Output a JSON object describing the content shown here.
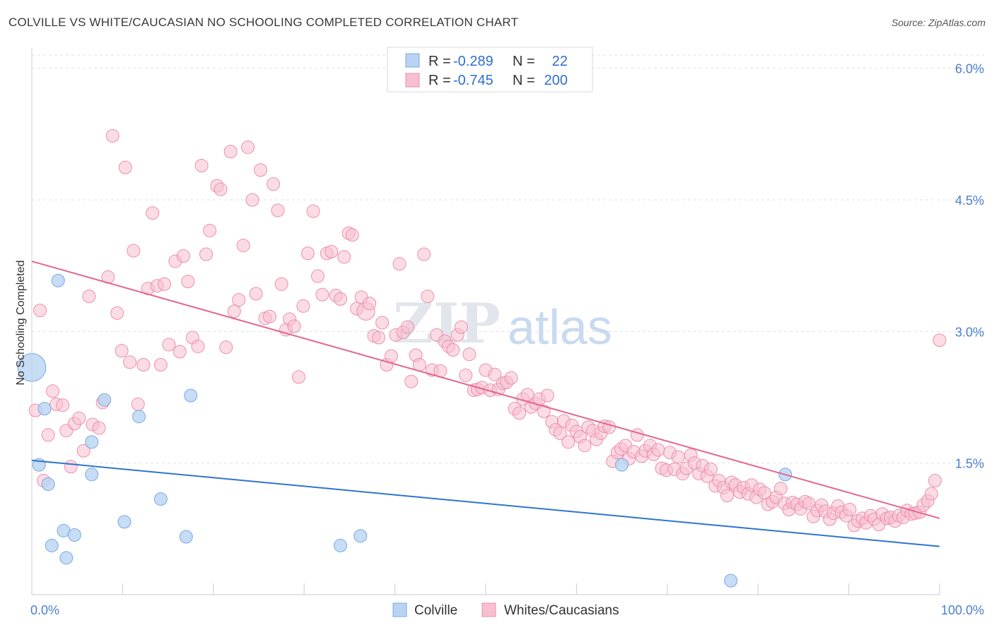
{
  "title": "COLVILLE VS WHITE/CAUCASIAN NO SCHOOLING COMPLETED CORRELATION CHART",
  "source": "Source: ZipAtlas.com",
  "watermark": {
    "part1": "ZIP",
    "part2": "atlas"
  },
  "colors": {
    "blue_fill": "#b9d3f3",
    "blue_stroke": "#7aa8e0",
    "blue_line": "#2f74d0",
    "pink_fill": "#f7bfd0",
    "pink_stroke": "#eb8fad",
    "pink_line": "#e2688f",
    "grid": "#dde0e5",
    "axis_text": "#4a7fd0"
  },
  "legend": {
    "rows": [
      {
        "r_label": "R = ",
        "r_value": "-0.289",
        "n_label": "N = ",
        "n_value": "22"
      },
      {
        "r_label": "R = ",
        "r_value": "-0.745",
        "n_label": "N = ",
        "n_value": "200"
      }
    ]
  },
  "bottom_legend": {
    "items": [
      "Colville",
      "Whites/Caucasians"
    ]
  },
  "chart_data": {
    "type": "scatter",
    "title": "COLVILLE VS WHITE/CAUCASIAN NO SCHOOLING COMPLETED CORRELATION CHART",
    "xlabel": "",
    "ylabel": "No Schooling Completed",
    "xlim": [
      0,
      100
    ],
    "ylim": [
      0,
      6.15
    ],
    "x_tick_labels": [
      "0.0%",
      "100.0%"
    ],
    "y_ticks": [
      1.5,
      3.0,
      4.5,
      6.0
    ],
    "y_tick_labels": [
      "1.5%",
      "3.0%",
      "4.5%",
      "6.0%"
    ],
    "series": [
      {
        "name": "Colville",
        "color": "#b9d3f3",
        "r": -0.289,
        "n": 22,
        "trend": {
          "x": [
            0,
            100
          ],
          "y": [
            1.53,
            0.55
          ]
        },
        "points": [
          {
            "x": 0.0,
            "y": 2.59,
            "s": 2.2
          },
          {
            "x": 0.8,
            "y": 1.48,
            "s": 1
          },
          {
            "x": 1.4,
            "y": 2.12,
            "s": 1
          },
          {
            "x": 1.8,
            "y": 1.26,
            "s": 1
          },
          {
            "x": 2.2,
            "y": 0.56,
            "s": 1
          },
          {
            "x": 2.9,
            "y": 3.58,
            "s": 1
          },
          {
            "x": 3.5,
            "y": 0.73,
            "s": 1
          },
          {
            "x": 3.8,
            "y": 0.42,
            "s": 1
          },
          {
            "x": 4.7,
            "y": 0.68,
            "s": 1
          },
          {
            "x": 6.6,
            "y": 1.74,
            "s": 1
          },
          {
            "x": 6.6,
            "y": 1.37,
            "s": 1
          },
          {
            "x": 8.0,
            "y": 2.22,
            "s": 1
          },
          {
            "x": 10.2,
            "y": 0.83,
            "s": 1
          },
          {
            "x": 11.8,
            "y": 2.03,
            "s": 1
          },
          {
            "x": 14.2,
            "y": 1.09,
            "s": 1
          },
          {
            "x": 17.0,
            "y": 0.66,
            "s": 1
          },
          {
            "x": 17.5,
            "y": 2.27,
            "s": 1
          },
          {
            "x": 34.0,
            "y": 0.56,
            "s": 1
          },
          {
            "x": 36.2,
            "y": 0.67,
            "s": 1
          },
          {
            "x": 65.0,
            "y": 1.48,
            "s": 1
          },
          {
            "x": 77.0,
            "y": 0.16,
            "s": 1
          },
          {
            "x": 83.0,
            "y": 1.37,
            "s": 1
          }
        ]
      },
      {
        "name": "Whites/Caucasians",
        "color": "#f7bfd0",
        "r": -0.745,
        "n": 200,
        "trend": {
          "x": [
            0,
            100
          ],
          "y": [
            3.8,
            0.87
          ]
        },
        "points": [
          {
            "x": 0.4,
            "y": 2.1
          },
          {
            "x": 0.9,
            "y": 3.24
          },
          {
            "x": 1.3,
            "y": 1.3
          },
          {
            "x": 1.8,
            "y": 1.82
          },
          {
            "x": 2.3,
            "y": 2.32
          },
          {
            "x": 2.7,
            "y": 2.17
          },
          {
            "x": 3.4,
            "y": 2.16
          },
          {
            "x": 3.8,
            "y": 1.87
          },
          {
            "x": 4.3,
            "y": 1.46
          },
          {
            "x": 4.7,
            "y": 1.95
          },
          {
            "x": 5.2,
            "y": 2.01
          },
          {
            "x": 5.7,
            "y": 1.64
          },
          {
            "x": 6.3,
            "y": 3.4
          },
          {
            "x": 6.7,
            "y": 1.94
          },
          {
            "x": 7.4,
            "y": 1.9
          },
          {
            "x": 7.8,
            "y": 2.19
          },
          {
            "x": 8.4,
            "y": 3.62
          },
          {
            "x": 8.9,
            "y": 5.23
          },
          {
            "x": 9.4,
            "y": 3.21
          },
          {
            "x": 9.9,
            "y": 2.78
          },
          {
            "x": 10.3,
            "y": 4.87
          },
          {
            "x": 10.8,
            "y": 2.65
          },
          {
            "x": 11.2,
            "y": 3.92
          },
          {
            "x": 11.7,
            "y": 2.17
          },
          {
            "x": 12.3,
            "y": 2.62
          },
          {
            "x": 12.8,
            "y": 3.49
          },
          {
            "x": 13.3,
            "y": 4.35
          },
          {
            "x": 13.8,
            "y": 3.52
          },
          {
            "x": 14.2,
            "y": 2.62
          },
          {
            "x": 14.6,
            "y": 3.54
          },
          {
            "x": 15.1,
            "y": 2.85
          },
          {
            "x": 15.8,
            "y": 3.8
          },
          {
            "x": 16.3,
            "y": 2.77
          },
          {
            "x": 16.7,
            "y": 3.86
          },
          {
            "x": 17.2,
            "y": 3.57
          },
          {
            "x": 17.7,
            "y": 2.93
          },
          {
            "x": 18.3,
            "y": 2.83
          },
          {
            "x": 18.7,
            "y": 4.89
          },
          {
            "x": 19.2,
            "y": 3.88
          },
          {
            "x": 19.6,
            "y": 4.15
          },
          {
            "x": 20.4,
            "y": 4.66
          },
          {
            "x": 20.8,
            "y": 4.62
          },
          {
            "x": 21.4,
            "y": 2.82
          },
          {
            "x": 21.9,
            "y": 5.05
          },
          {
            "x": 22.3,
            "y": 3.23
          },
          {
            "x": 22.8,
            "y": 3.36
          },
          {
            "x": 23.3,
            "y": 3.98
          },
          {
            "x": 23.8,
            "y": 5.1
          },
          {
            "x": 24.3,
            "y": 4.5
          },
          {
            "x": 24.7,
            "y": 3.43
          },
          {
            "x": 25.2,
            "y": 4.84
          },
          {
            "x": 25.7,
            "y": 3.15
          },
          {
            "x": 26.2,
            "y": 3.17
          },
          {
            "x": 26.6,
            "y": 4.68
          },
          {
            "x": 27.1,
            "y": 4.38
          },
          {
            "x": 27.5,
            "y": 3.54
          },
          {
            "x": 28.0,
            "y": 3.02
          },
          {
            "x": 28.4,
            "y": 3.14
          },
          {
            "x": 28.9,
            "y": 3.06
          },
          {
            "x": 29.4,
            "y": 2.48
          },
          {
            "x": 29.9,
            "y": 3.29
          },
          {
            "x": 30.4,
            "y": 3.89
          },
          {
            "x": 31.0,
            "y": 4.37
          },
          {
            "x": 31.5,
            "y": 3.63
          },
          {
            "x": 32.0,
            "y": 3.42
          },
          {
            "x": 32.5,
            "y": 3.89
          },
          {
            "x": 33.0,
            "y": 3.91
          },
          {
            "x": 33.5,
            "y": 3.41
          },
          {
            "x": 34.0,
            "y": 3.37
          },
          {
            "x": 34.4,
            "y": 3.85
          },
          {
            "x": 34.9,
            "y": 4.12
          },
          {
            "x": 35.3,
            "y": 4.1
          },
          {
            "x": 35.8,
            "y": 3.26
          },
          {
            "x": 36.3,
            "y": 3.39
          },
          {
            "x": 36.8,
            "y": 3.23,
            "s": 1.4
          },
          {
            "x": 37.2,
            "y": 3.32
          },
          {
            "x": 37.7,
            "y": 2.95
          },
          {
            "x": 38.2,
            "y": 2.93
          },
          {
            "x": 38.6,
            "y": 3.1
          },
          {
            "x": 39.1,
            "y": 2.62
          },
          {
            "x": 39.6,
            "y": 2.72
          },
          {
            "x": 40.1,
            "y": 2.96
          },
          {
            "x": 40.5,
            "y": 3.77
          },
          {
            "x": 40.9,
            "y": 2.99
          },
          {
            "x": 41.4,
            "y": 3.05
          },
          {
            "x": 41.8,
            "y": 2.43
          },
          {
            "x": 42.3,
            "y": 2.73
          },
          {
            "x": 42.7,
            "y": 2.62
          },
          {
            "x": 43.2,
            "y": 3.88
          },
          {
            "x": 43.6,
            "y": 3.4
          },
          {
            "x": 44.1,
            "y": 2.56
          },
          {
            "x": 44.6,
            "y": 2.96
          },
          {
            "x": 45.0,
            "y": 2.55
          },
          {
            "x": 45.5,
            "y": 2.89
          },
          {
            "x": 45.9,
            "y": 2.83
          },
          {
            "x": 46.4,
            "y": 2.79
          },
          {
            "x": 46.9,
            "y": 2.96
          },
          {
            "x": 47.3,
            "y": 3.05
          },
          {
            "x": 47.8,
            "y": 2.5
          },
          {
            "x": 48.2,
            "y": 2.74
          },
          {
            "x": 48.7,
            "y": 2.33
          },
          {
            "x": 49.1,
            "y": 2.34
          },
          {
            "x": 49.6,
            "y": 2.36
          },
          {
            "x": 50.0,
            "y": 2.56
          },
          {
            "x": 50.5,
            "y": 2.33
          },
          {
            "x": 51.0,
            "y": 2.51
          },
          {
            "x": 51.4,
            "y": 2.34
          },
          {
            "x": 51.9,
            "y": 2.41
          },
          {
            "x": 52.3,
            "y": 2.42
          },
          {
            "x": 52.8,
            "y": 2.47
          },
          {
            "x": 53.2,
            "y": 2.12
          },
          {
            "x": 53.7,
            "y": 2.07
          },
          {
            "x": 54.1,
            "y": 2.23
          },
          {
            "x": 54.6,
            "y": 2.28
          },
          {
            "x": 55.0,
            "y": 2.14
          },
          {
            "x": 55.5,
            "y": 2.18
          },
          {
            "x": 55.9,
            "y": 2.23
          },
          {
            "x": 56.4,
            "y": 2.09
          },
          {
            "x": 56.8,
            "y": 2.27
          },
          {
            "x": 57.3,
            "y": 1.97
          },
          {
            "x": 57.7,
            "y": 1.88
          },
          {
            "x": 58.2,
            "y": 1.84
          },
          {
            "x": 58.6,
            "y": 1.98
          },
          {
            "x": 59.1,
            "y": 1.74
          },
          {
            "x": 59.5,
            "y": 1.93
          },
          {
            "x": 60.0,
            "y": 1.86
          },
          {
            "x": 60.4,
            "y": 1.8
          },
          {
            "x": 60.9,
            "y": 1.7
          },
          {
            "x": 61.3,
            "y": 1.91
          },
          {
            "x": 61.8,
            "y": 1.87
          },
          {
            "x": 62.2,
            "y": 1.77
          },
          {
            "x": 62.7,
            "y": 1.84
          },
          {
            "x": 63.1,
            "y": 1.92
          },
          {
            "x": 63.6,
            "y": 1.91
          },
          {
            "x": 64.0,
            "y": 1.52
          },
          {
            "x": 64.5,
            "y": 1.62
          },
          {
            "x": 64.9,
            "y": 1.66
          },
          {
            "x": 65.4,
            "y": 1.7
          },
          {
            "x": 65.8,
            "y": 1.55
          },
          {
            "x": 66.3,
            "y": 1.63
          },
          {
            "x": 66.7,
            "y": 1.82
          },
          {
            "x": 67.2,
            "y": 1.58
          },
          {
            "x": 67.6,
            "y": 1.64
          },
          {
            "x": 68.1,
            "y": 1.7
          },
          {
            "x": 68.5,
            "y": 1.6
          },
          {
            "x": 69.0,
            "y": 1.65
          },
          {
            "x": 69.4,
            "y": 1.44
          },
          {
            "x": 69.9,
            "y": 1.42
          },
          {
            "x": 70.3,
            "y": 1.62
          },
          {
            "x": 70.8,
            "y": 1.43
          },
          {
            "x": 71.2,
            "y": 1.57
          },
          {
            "x": 71.7,
            "y": 1.38
          },
          {
            "x": 72.1,
            "y": 1.44
          },
          {
            "x": 72.6,
            "y": 1.59
          },
          {
            "x": 73.0,
            "y": 1.5
          },
          {
            "x": 73.5,
            "y": 1.38
          },
          {
            "x": 73.9,
            "y": 1.47
          },
          {
            "x": 74.4,
            "y": 1.35
          },
          {
            "x": 74.8,
            "y": 1.43
          },
          {
            "x": 75.3,
            "y": 1.24
          },
          {
            "x": 75.7,
            "y": 1.3
          },
          {
            "x": 76.2,
            "y": 1.22
          },
          {
            "x": 76.6,
            "y": 1.13
          },
          {
            "x": 77.1,
            "y": 1.28
          },
          {
            "x": 77.5,
            "y": 1.25
          },
          {
            "x": 78.0,
            "y": 1.17
          },
          {
            "x": 78.4,
            "y": 1.22
          },
          {
            "x": 78.9,
            "y": 1.15
          },
          {
            "x": 79.3,
            "y": 1.25
          },
          {
            "x": 79.8,
            "y": 1.11
          },
          {
            "x": 80.2,
            "y": 1.2
          },
          {
            "x": 80.7,
            "y": 1.16
          },
          {
            "x": 81.1,
            "y": 1.03
          },
          {
            "x": 81.6,
            "y": 1.06
          },
          {
            "x": 82.0,
            "y": 1.11
          },
          {
            "x": 82.5,
            "y": 1.21
          },
          {
            "x": 82.9,
            "y": 1.04
          },
          {
            "x": 83.4,
            "y": 0.97
          },
          {
            "x": 83.8,
            "y": 1.05
          },
          {
            "x": 84.3,
            "y": 1.03
          },
          {
            "x": 84.7,
            "y": 0.98
          },
          {
            "x": 85.2,
            "y": 1.06
          },
          {
            "x": 85.6,
            "y": 1.04
          },
          {
            "x": 86.1,
            "y": 0.89
          },
          {
            "x": 86.5,
            "y": 0.96
          },
          {
            "x": 87.0,
            "y": 1.02
          },
          {
            "x": 87.4,
            "y": 0.95
          },
          {
            "x": 87.9,
            "y": 0.86
          },
          {
            "x": 88.3,
            "y": 0.93
          },
          {
            "x": 88.8,
            "y": 1.01
          },
          {
            "x": 89.2,
            "y": 0.94
          },
          {
            "x": 89.7,
            "y": 0.9
          },
          {
            "x": 90.1,
            "y": 0.97
          },
          {
            "x": 90.6,
            "y": 0.79
          },
          {
            "x": 91.0,
            "y": 0.84
          },
          {
            "x": 91.5,
            "y": 0.87
          },
          {
            "x": 91.9,
            "y": 0.82
          },
          {
            "x": 92.4,
            "y": 0.9
          },
          {
            "x": 92.8,
            "y": 0.86
          },
          {
            "x": 93.3,
            "y": 0.8
          },
          {
            "x": 93.7,
            "y": 0.92
          },
          {
            "x": 94.2,
            "y": 0.87
          },
          {
            "x": 94.6,
            "y": 0.88
          },
          {
            "x": 95.1,
            "y": 0.84
          },
          {
            "x": 95.5,
            "y": 0.9
          },
          {
            "x": 96.0,
            "y": 0.88
          },
          {
            "x": 96.4,
            "y": 0.96
          },
          {
            "x": 96.9,
            "y": 0.92
          },
          {
            "x": 97.3,
            "y": 0.93
          },
          {
            "x": 97.8,
            "y": 0.94
          },
          {
            "x": 98.2,
            "y": 1.02
          },
          {
            "x": 98.7,
            "y": 1.07
          },
          {
            "x": 99.1,
            "y": 1.15
          },
          {
            "x": 99.5,
            "y": 1.3
          },
          {
            "x": 100.0,
            "y": 2.9
          }
        ]
      }
    ]
  }
}
